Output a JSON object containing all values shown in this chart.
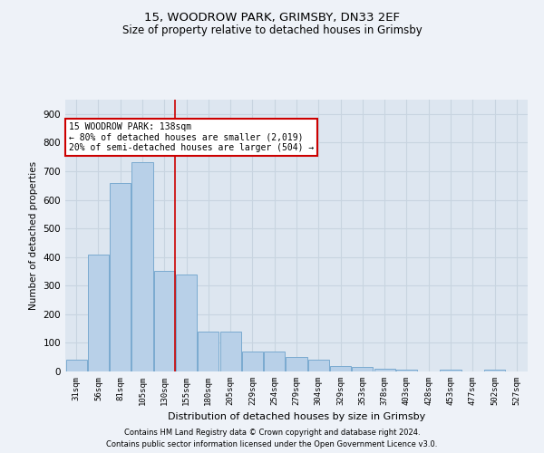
{
  "title1": "15, WOODROW PARK, GRIMSBY, DN33 2EF",
  "title2": "Size of property relative to detached houses in Grimsby",
  "xlabel": "Distribution of detached houses by size in Grimsby",
  "ylabel": "Number of detached properties",
  "bar_categories": [
    "31sqm",
    "56sqm",
    "81sqm",
    "105sqm",
    "130sqm",
    "155sqm",
    "180sqm",
    "205sqm",
    "229sqm",
    "254sqm",
    "279sqm",
    "304sqm",
    "329sqm",
    "353sqm",
    "378sqm",
    "403sqm",
    "428sqm",
    "453sqm",
    "477sqm",
    "502sqm",
    "527sqm"
  ],
  "bar_values": [
    40,
    410,
    660,
    730,
    350,
    340,
    140,
    140,
    70,
    70,
    50,
    40,
    20,
    15,
    10,
    5,
    0,
    5,
    0,
    5,
    0
  ],
  "bar_color": "#b8d0e8",
  "bar_edgecolor": "#7aaad0",
  "red_line_x": 4.5,
  "ylim": [
    0,
    950
  ],
  "yticks": [
    0,
    100,
    200,
    300,
    400,
    500,
    600,
    700,
    800,
    900
  ],
  "annotation_text": "15 WOODROW PARK: 138sqm\n← 80% of detached houses are smaller (2,019)\n20% of semi-detached houses are larger (504) →",
  "footer1": "Contains HM Land Registry data © Crown copyright and database right 2024.",
  "footer2": "Contains public sector information licensed under the Open Government Licence v3.0.",
  "bg_color": "#eef2f8",
  "plot_bg_color": "#dde6f0",
  "grid_color": "#c8d4e0",
  "title1_fontsize": 9.5,
  "title2_fontsize": 8.5
}
